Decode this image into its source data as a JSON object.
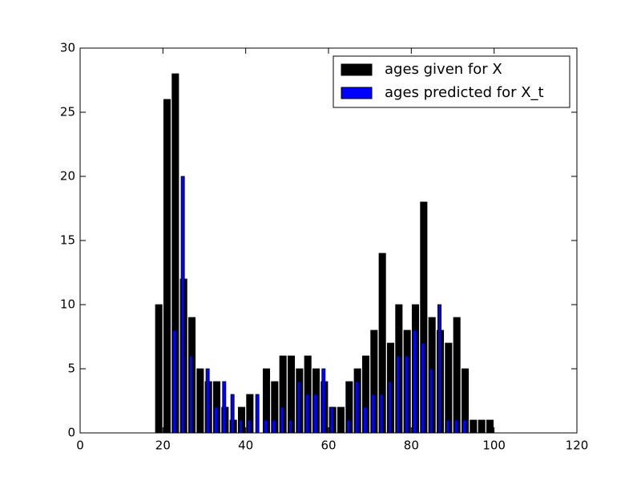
{
  "chart_data": {
    "type": "bar",
    "title": "",
    "xlabel": "",
    "ylabel": "",
    "xlim": [
      0,
      120
    ],
    "ylim": [
      0,
      30
    ],
    "x_ticks": [
      0,
      20,
      40,
      60,
      80,
      100,
      120
    ],
    "y_ticks": [
      0,
      5,
      10,
      15,
      20,
      25,
      30
    ],
    "grid": false,
    "legend_position": "top-right",
    "series": [
      {
        "name": "ages given for X",
        "color": "#000000",
        "points": [
          {
            "x": 11.0,
            "y": 0
          },
          {
            "x": 13.0,
            "y": 0
          },
          {
            "x": 15.0,
            "y": 0
          },
          {
            "x": 17.0,
            "y": 0
          },
          {
            "x": 19.0,
            "y": 10
          },
          {
            "x": 21.0,
            "y": 26
          },
          {
            "x": 23.0,
            "y": 28
          },
          {
            "x": 25.0,
            "y": 12
          },
          {
            "x": 27.0,
            "y": 9
          },
          {
            "x": 29.0,
            "y": 5
          },
          {
            "x": 31.0,
            "y": 4
          },
          {
            "x": 33.0,
            "y": 4
          },
          {
            "x": 35.0,
            "y": 2
          },
          {
            "x": 37.0,
            "y": 1
          },
          {
            "x": 39.0,
            "y": 2
          },
          {
            "x": 41.0,
            "y": 3
          },
          {
            "x": 43.0,
            "y": 0
          },
          {
            "x": 45.0,
            "y": 5
          },
          {
            "x": 47.0,
            "y": 4
          },
          {
            "x": 49.0,
            "y": 6
          },
          {
            "x": 51.0,
            "y": 6
          },
          {
            "x": 53.0,
            "y": 5
          },
          {
            "x": 55.0,
            "y": 6
          },
          {
            "x": 57.0,
            "y": 5
          },
          {
            "x": 59.0,
            "y": 4
          },
          {
            "x": 61.0,
            "y": 2
          },
          {
            "x": 63.0,
            "y": 2
          },
          {
            "x": 65.0,
            "y": 4
          },
          {
            "x": 67.0,
            "y": 5
          },
          {
            "x": 69.0,
            "y": 6
          },
          {
            "x": 71.0,
            "y": 8
          },
          {
            "x": 73.0,
            "y": 14
          },
          {
            "x": 75.0,
            "y": 7
          },
          {
            "x": 77.0,
            "y": 10
          },
          {
            "x": 79.0,
            "y": 8
          },
          {
            "x": 81.0,
            "y": 10
          },
          {
            "x": 83.0,
            "y": 18
          },
          {
            "x": 85.0,
            "y": 9
          },
          {
            "x": 87.0,
            "y": 8
          },
          {
            "x": 89.0,
            "y": 7
          },
          {
            "x": 91.0,
            "y": 9
          },
          {
            "x": 93.0,
            "y": 5
          },
          {
            "x": 95.0,
            "y": 1
          },
          {
            "x": 97.0,
            "y": 1
          },
          {
            "x": 99.0,
            "y": 1
          },
          {
            "x": 101.0,
            "y": 0
          },
          {
            "x": 103.0,
            "y": 0
          },
          {
            "x": 105.0,
            "y": 0
          }
        ]
      },
      {
        "name": "ages predicted for X_t",
        "color": "#0000ff",
        "points": [
          {
            "x": 20.8,
            "y": 0
          },
          {
            "x": 22.8,
            "y": 8
          },
          {
            "x": 24.8,
            "y": 20
          },
          {
            "x": 26.8,
            "y": 6
          },
          {
            "x": 28.8,
            "y": 0
          },
          {
            "x": 30.8,
            "y": 5
          },
          {
            "x": 32.8,
            "y": 2
          },
          {
            "x": 34.8,
            "y": 4
          },
          {
            "x": 36.8,
            "y": 3
          },
          {
            "x": 38.8,
            "y": 1
          },
          {
            "x": 40.8,
            "y": 1
          },
          {
            "x": 42.8,
            "y": 3
          },
          {
            "x": 44.8,
            "y": 1
          },
          {
            "x": 46.8,
            "y": 1
          },
          {
            "x": 48.8,
            "y": 2
          },
          {
            "x": 50.8,
            "y": 1
          },
          {
            "x": 52.8,
            "y": 4
          },
          {
            "x": 54.8,
            "y": 3
          },
          {
            "x": 56.8,
            "y": 3
          },
          {
            "x": 58.8,
            "y": 5
          },
          {
            "x": 60.8,
            "y": 2
          },
          {
            "x": 62.8,
            "y": 0
          },
          {
            "x": 64.8,
            "y": 1
          },
          {
            "x": 66.8,
            "y": 4
          },
          {
            "x": 68.8,
            "y": 2
          },
          {
            "x": 70.8,
            "y": 3
          },
          {
            "x": 72.8,
            "y": 3
          },
          {
            "x": 74.8,
            "y": 4
          },
          {
            "x": 76.8,
            "y": 6
          },
          {
            "x": 78.8,
            "y": 6
          },
          {
            "x": 80.8,
            "y": 8
          },
          {
            "x": 82.8,
            "y": 7
          },
          {
            "x": 84.8,
            "y": 5
          },
          {
            "x": 86.8,
            "y": 10
          },
          {
            "x": 88.8,
            "y": 1
          },
          {
            "x": 90.8,
            "y": 1
          },
          {
            "x": 92.8,
            "y": 1
          }
        ]
      }
    ]
  }
}
